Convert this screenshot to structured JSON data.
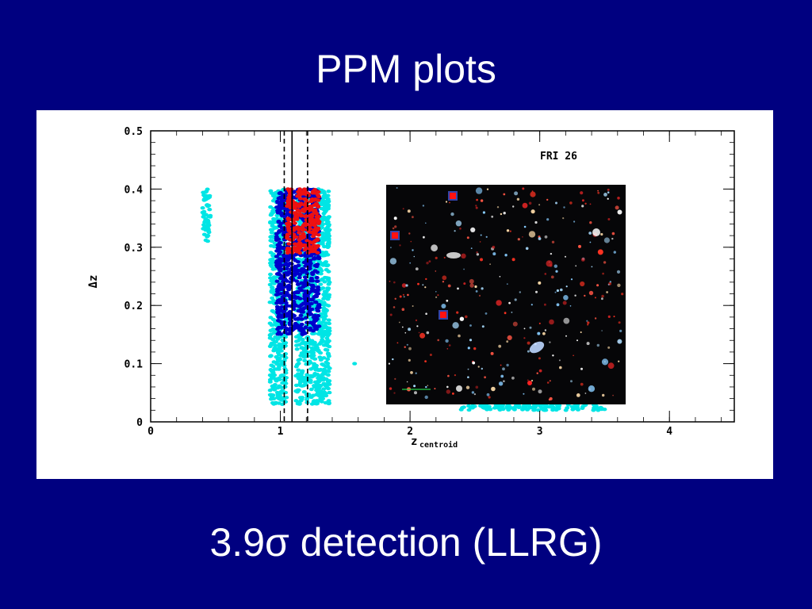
{
  "slide": {
    "title": "PPM plots",
    "caption": "3.9σ detection (LLRG)"
  },
  "colors": {
    "background": "#000080",
    "panel": "#ffffff",
    "cyan_series": "#00e5e5",
    "blue_series": "#0000cc",
    "red_series": "#ee1111"
  },
  "chart_data": {
    "type": "scatter",
    "annotation": "FRI 26",
    "ylabel": "Δz",
    "xlabel_main": "z",
    "xlabel_sub": "centroid",
    "xlim": [
      0,
      4.5
    ],
    "ylim": [
      0,
      0.5
    ],
    "x_ticks": [
      "0",
      "1",
      "2",
      "3",
      "4"
    ],
    "y_ticks": [
      "0",
      "0.1",
      "0.2",
      "0.3",
      "0.4",
      "0.5"
    ],
    "vertical_lines": [
      {
        "x": 1.03,
        "style": "dashed"
      },
      {
        "x": 1.09,
        "style": "solid"
      },
      {
        "x": 1.21,
        "style": "dashed"
      }
    ],
    "series": [
      {
        "color": "cyan",
        "regions": [
          {
            "x": [
              0.4,
              0.46
            ],
            "y": [
              0.31,
              0.4
            ]
          },
          {
            "x": [
              0.92,
              1.05
            ],
            "y": [
              0.03,
              0.4
            ]
          },
          {
            "x": [
              1.12,
              1.38
            ],
            "y": [
              0.03,
              0.4
            ]
          },
          {
            "x": [
              1.57,
              1.58
            ],
            "y": [
              0.1,
              0.1
            ]
          },
          {
            "x": [
              2.38,
              3.5
            ],
            "y": [
              0.02,
              0.03
            ]
          }
        ]
      },
      {
        "color": "blue",
        "regions": [
          {
            "x": [
              0.97,
              1.3
            ],
            "y": [
              0.15,
              0.4
            ]
          }
        ]
      },
      {
        "color": "red",
        "regions": [
          {
            "x": [
              1.05,
              1.3
            ],
            "y": [
              0.29,
              0.4
            ]
          }
        ]
      }
    ],
    "inset": {
      "type": "image",
      "description_icon": "galaxy-field-image"
    }
  }
}
